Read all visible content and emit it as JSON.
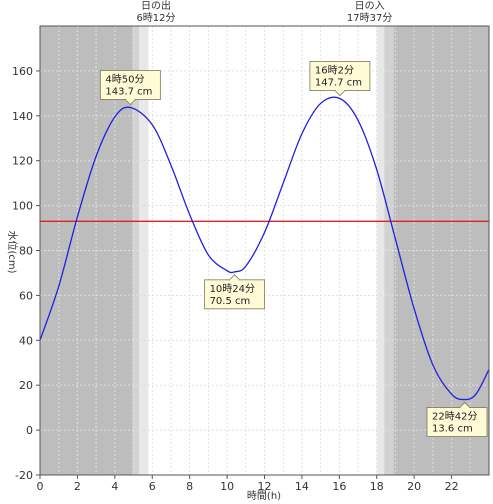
{
  "chart_data": {
    "type": "line",
    "xlabel": "時間(h)",
    "ylabel": "水位(cm)",
    "xlim": [
      0,
      24
    ],
    "ylim": [
      -20,
      180
    ],
    "x_ticks": [
      0,
      2,
      4,
      6,
      8,
      10,
      12,
      14,
      16,
      18,
      20,
      22
    ],
    "y_ticks": [
      -20,
      0,
      20,
      40,
      60,
      80,
      100,
      120,
      140,
      160
    ],
    "grid": true,
    "colors": {
      "line": "#2020e0",
      "reference_line": "#e02020",
      "night": "#bdbdbd",
      "twilight_dark": "#d2d2d2",
      "twilight_light": "#e8e8e8"
    },
    "reference_line": {
      "y": 93
    },
    "twilight": {
      "sunrise": {
        "night_end": 4.95,
        "mid": 5.3,
        "day_start": 5.8
      },
      "sunset": {
        "day_start": 18.0,
        "mid": 18.4,
        "night_start": 18.9
      }
    },
    "sun_events": [
      {
        "name": "日の出",
        "time": "6時12分",
        "hour": 6.2
      },
      {
        "name": "日の入",
        "time": "17時37分",
        "hour": 17.62
      }
    ],
    "series": [
      {
        "x": [
          0,
          1,
          2,
          3,
          4,
          4.83,
          6,
          7,
          8,
          9,
          10,
          10.4,
          11,
          12,
          13,
          14,
          15,
          16.03,
          17,
          18,
          19,
          20,
          21,
          22,
          22.7,
          23.3,
          24
        ],
        "y": [
          40,
          64,
          95,
          122,
          139.5,
          143.7,
          136,
          118,
          96,
          78,
          71,
          70.5,
          73,
          88,
          110,
          132,
          145.5,
          147.7,
          138,
          116,
          85,
          54,
          29,
          16,
          13.6,
          16,
          27
        ]
      }
    ],
    "annotations": [
      {
        "time": "4時50分",
        "value": "143.7 cm",
        "x": 4.83,
        "y": 143.7,
        "pointer": "down"
      },
      {
        "time": "10時24分",
        "value": "70.5 cm",
        "x": 10.4,
        "y": 70.5,
        "pointer": "up"
      },
      {
        "time": "16時2分",
        "value": "147.7 cm",
        "x": 16.03,
        "y": 147.7,
        "pointer": "down"
      },
      {
        "time": "22時42分",
        "value": "13.6 cm",
        "x": 22.7,
        "y": 13.6,
        "pointer": "up"
      }
    ]
  }
}
